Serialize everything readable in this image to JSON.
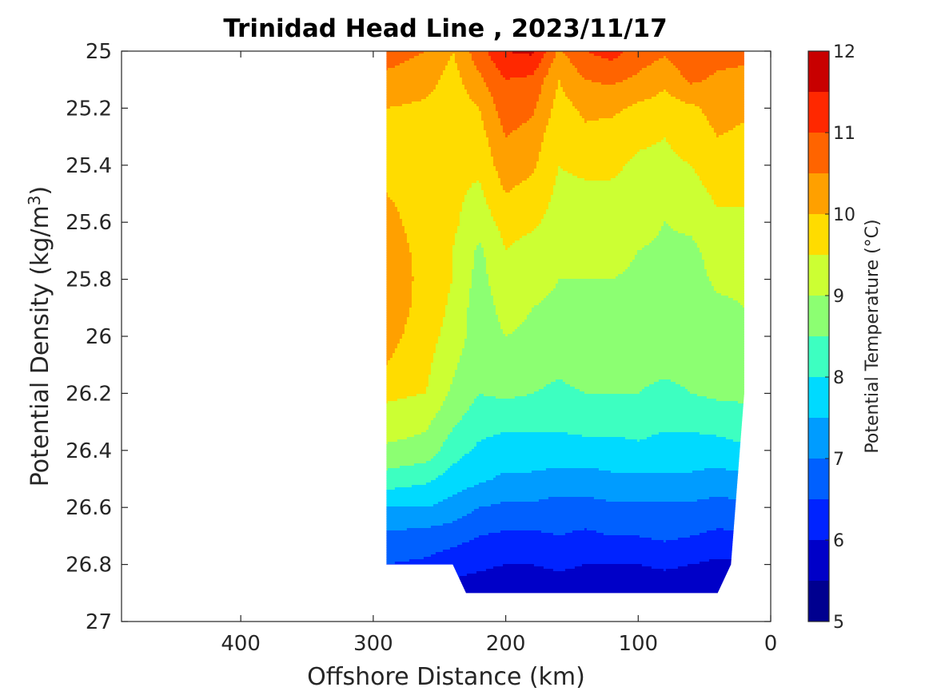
{
  "chart_data": {
    "type": "heatmap",
    "title": "Trinidad Head Line , 2023/11/17",
    "xlabel": "Offshore Distance (km)",
    "ylabel_main": "Potential Density (kg/m",
    "ylabel_sup": "3",
    "ylabel_close": ")",
    "colorbar_label": "Potential Temperature (°C)",
    "xlim": [
      490,
      0
    ],
    "x_reversed": true,
    "ylim": [
      25,
      27
    ],
    "y_reversed": true,
    "x_ticks": [
      400,
      300,
      200,
      100,
      0
    ],
    "x_tick_labels": [
      "400",
      "300",
      "200",
      "100",
      "0"
    ],
    "y_ticks": [
      25,
      25.2,
      25.4,
      25.6,
      25.8,
      26,
      26.2,
      26.4,
      26.6,
      26.8,
      27
    ],
    "y_tick_labels": [
      "25",
      "25.2",
      "25.4",
      "25.6",
      "25.8",
      "26",
      "26.2",
      "26.4",
      "26.6",
      "26.8",
      "27"
    ],
    "colorbar_ticks": [
      5,
      6,
      7,
      8,
      9,
      10,
      11,
      12
    ],
    "colorbar_tick_labels": [
      "5",
      "6",
      "7",
      "8",
      "9",
      "10",
      "11",
      "12"
    ],
    "colorbar_range": [
      5,
      12
    ],
    "contour_levels": [
      5,
      5.5,
      6,
      6.5,
      7,
      7.5,
      8,
      8.5,
      9,
      9.5,
      10,
      10.5,
      11,
      11.5,
      12
    ],
    "colors": [
      "#00008f",
      "#0000c8",
      "#0023ff",
      "#0060ff",
      "#009cff",
      "#00daff",
      "#3dffc1",
      "#8cff72",
      "#ccff33",
      "#ffdc00",
      "#ffa000",
      "#ff6400",
      "#ff2800",
      "#c80000"
    ],
    "x_grid": [
      20,
      40,
      60,
      80,
      100,
      120,
      140,
      160,
      180,
      200,
      220,
      240,
      260,
      290
    ],
    "y_grid": [
      25.0,
      25.1,
      25.2,
      25.3,
      25.4,
      25.5,
      25.6,
      25.7,
      25.8,
      25.9,
      26.0,
      26.1,
      26.2,
      26.3,
      26.4,
      26.5,
      26.6,
      26.7,
      26.8,
      26.9
    ],
    "temperature": [
      [
        10.6,
        10.7,
        11.0,
        10.6,
        10.8,
        11.2,
        11.0,
        10.4,
        11.6,
        11.5,
        10.8,
        10.0,
        10.5,
        10.7
      ],
      [
        10.4,
        10.4,
        10.6,
        10.1,
        10.4,
        10.6,
        10.5,
        10.0,
        10.9,
        11.0,
        10.4,
        9.8,
        10.2,
        10.4
      ],
      [
        10.1,
        10.2,
        9.9,
        9.8,
        9.9,
        10.1,
        10.1,
        9.8,
        10.6,
        10.8,
        10.0,
        9.7,
        9.9,
        10.0
      ],
      [
        9.9,
        10.0,
        9.7,
        9.5,
        9.6,
        9.8,
        9.9,
        9.6,
        10.3,
        10.5,
        9.8,
        9.6,
        9.8,
        9.9
      ],
      [
        9.7,
        9.8,
        9.5,
        9.4,
        9.4,
        9.6,
        9.6,
        9.5,
        10.1,
        10.3,
        9.6,
        9.6,
        9.7,
        9.9
      ],
      [
        9.6,
        9.6,
        9.3,
        9.3,
        9.3,
        9.4,
        9.4,
        9.4,
        9.8,
        10.0,
        9.4,
        9.6,
        9.7,
        10.0
      ],
      [
        9.4,
        9.4,
        9.1,
        9.0,
        9.2,
        9.3,
        9.3,
        9.3,
        9.6,
        9.7,
        9.2,
        9.6,
        9.7,
        10.2
      ],
      [
        9.2,
        9.2,
        8.9,
        8.9,
        9.0,
        9.2,
        9.1,
        9.1,
        9.3,
        9.5,
        8.9,
        9.5,
        9.8,
        10.3
      ],
      [
        9.1,
        9.1,
        8.8,
        8.8,
        8.9,
        9.0,
        9.0,
        9.0,
        9.2,
        9.4,
        8.8,
        9.5,
        9.8,
        10.4
      ],
      [
        9.0,
        8.9,
        8.7,
        8.7,
        8.8,
        8.9,
        8.9,
        8.9,
        9.0,
        9.2,
        8.7,
        9.4,
        9.8,
        10.3
      ],
      [
        8.9,
        8.8,
        8.6,
        8.6,
        8.7,
        8.8,
        8.8,
        8.8,
        8.9,
        9.0,
        8.7,
        9.3,
        9.7,
        10.2
      ],
      [
        8.7,
        8.7,
        8.6,
        8.6,
        8.6,
        8.7,
        8.7,
        8.6,
        8.7,
        8.8,
        8.6,
        9.1,
        9.6,
        10.0
      ],
      [
        8.6,
        8.6,
        8.5,
        8.4,
        8.5,
        8.5,
        8.5,
        8.4,
        8.5,
        8.6,
        8.5,
        8.9,
        9.5,
        9.6
      ],
      [
        8.3,
        8.2,
        8.1,
        8.1,
        8.2,
        8.2,
        8.2,
        8.1,
        8.1,
        8.1,
        8.2,
        8.6,
        9.1,
        9.3
      ],
      [
        7.9,
        7.8,
        7.8,
        7.8,
        7.9,
        7.8,
        7.8,
        7.8,
        7.8,
        7.8,
        7.9,
        8.2,
        8.8,
        8.9
      ],
      [
        7.4,
        7.3,
        7.4,
        7.4,
        7.4,
        7.4,
        7.3,
        7.3,
        7.4,
        7.4,
        7.6,
        7.8,
        8.1,
        8.3
      ],
      [
        6.9,
        6.8,
        6.9,
        6.9,
        6.9,
        6.9,
        6.8,
        6.8,
        6.9,
        6.9,
        7.0,
        7.3,
        7.5,
        7.5
      ],
      [
        6.4,
        6.4,
        6.5,
        6.6,
        6.5,
        6.5,
        6.4,
        6.5,
        6.4,
        6.4,
        6.5,
        6.7,
        6.8,
        6.9
      ],
      [
        5.9,
        5.9,
        6.0,
        6.1,
        6.0,
        6.0,
        6.0,
        6.1,
        6.0,
        6.0,
        6.1,
        6.2,
        6.4,
        6.5
      ],
      [
        5.6,
        5.5,
        5.6,
        5.6,
        5.6,
        5.6,
        5.6,
        5.7,
        5.6,
        5.6,
        5.7,
        5.8,
        6.0,
        6.1
      ]
    ],
    "data_coverage": [
      {
        "x": 290,
        "y_top": 25.0,
        "y_bottom": 26.8
      },
      {
        "x": 240,
        "y_top": 25.0,
        "y_bottom": 26.8
      },
      {
        "x": 230,
        "y_top": 25.0,
        "y_bottom": 26.9
      },
      {
        "x": 40,
        "y_top": 25.0,
        "y_bottom": 26.9
      },
      {
        "x": 30,
        "y_top": 25.0,
        "y_bottom": 26.8
      },
      {
        "x": 20,
        "y_top": 25.0,
        "y_bottom": 26.2
      }
    ],
    "grid": false,
    "legend": "colorbar-right"
  }
}
